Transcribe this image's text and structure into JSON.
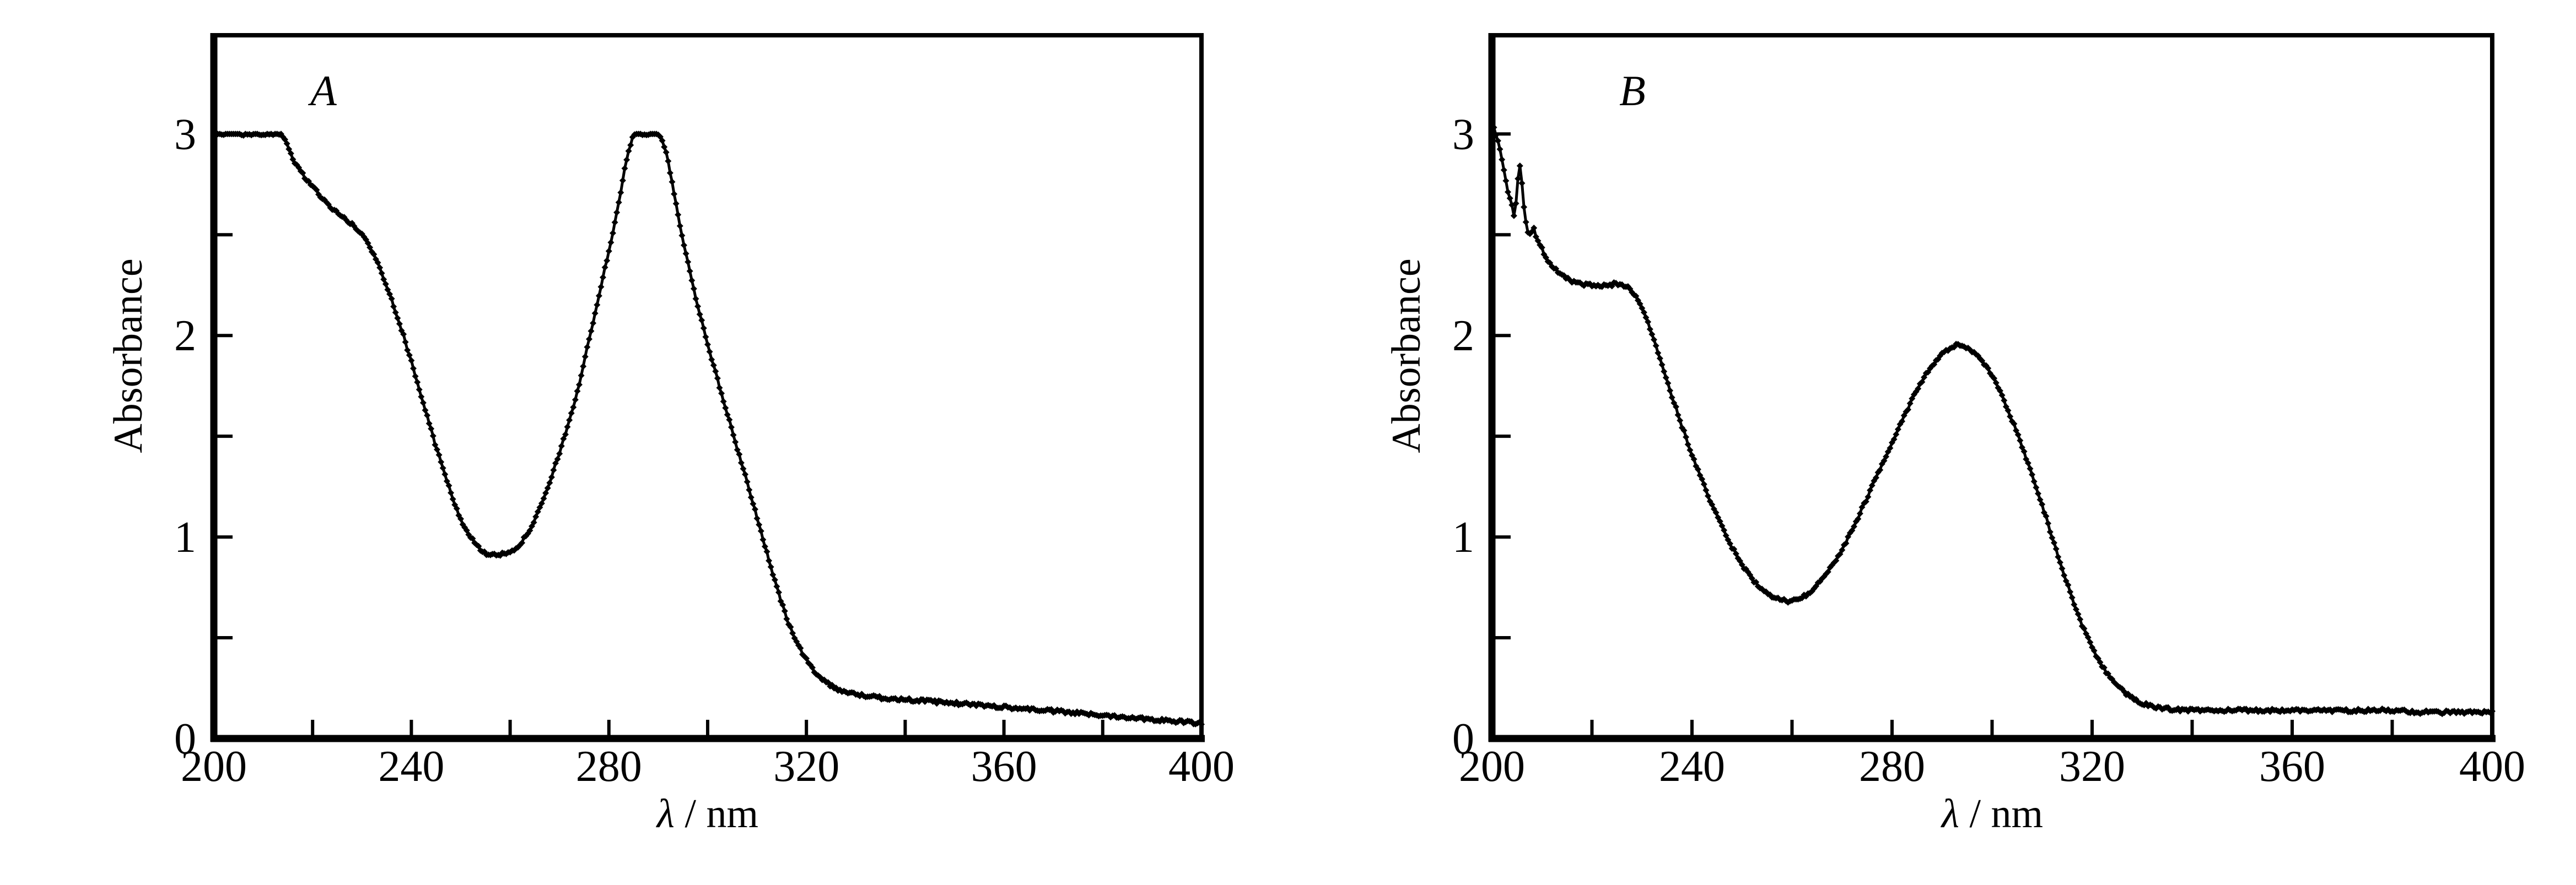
{
  "figure": {
    "background_color": "#ffffff",
    "panel_labels": [
      "A",
      "B"
    ]
  },
  "chart_data": [
    {
      "type": "line",
      "panel_label": "A",
      "title": "",
      "xlabel": "λ / nm",
      "xlabel_symbol": "λ",
      "xlabel_unit": " / nm",
      "ylabel": "Absorbance",
      "xlim": [
        200,
        400
      ],
      "ylim": [
        0,
        3.49
      ],
      "x_tick_labels": [
        200,
        240,
        280,
        320,
        360,
        400
      ],
      "x_ticks": [
        220,
        240,
        260,
        280,
        300,
        320,
        340,
        360,
        380,
        400
      ],
      "y_tick_labels": [
        0,
        1,
        2,
        3
      ],
      "y_ticks": [
        0.5,
        1,
        1.5,
        2,
        2.5,
        3
      ],
      "grid": false,
      "legend": "none",
      "line_color": "#000000",
      "marker": "diamond",
      "clip_max": 3.0,
      "noise_amplitude": 0.008,
      "x": [
        200,
        203,
        206,
        209,
        212,
        213.5,
        214.5,
        216,
        218,
        220,
        222,
        224,
        226,
        228,
        230,
        232,
        234,
        236,
        238,
        240,
        242,
        244,
        246,
        248,
        250,
        252,
        254,
        256,
        258,
        260,
        262,
        264,
        266,
        268,
        270,
        272,
        274,
        276,
        278,
        280,
        282,
        283.5,
        285,
        285.8,
        289.8,
        290.6,
        292,
        294,
        296,
        298,
        300,
        302,
        304,
        306,
        308,
        310,
        312,
        314,
        316,
        318,
        320,
        322,
        324,
        326,
        328,
        330,
        334,
        338,
        342,
        346,
        350,
        354,
        358,
        362,
        366,
        370,
        374,
        378,
        382,
        386,
        390,
        394,
        398,
        400
      ],
      "y": [
        3,
        3,
        3,
        3,
        3,
        3,
        2.96,
        2.88,
        2.8,
        2.74,
        2.68,
        2.63,
        2.59,
        2.55,
        2.5,
        2.42,
        2.31,
        2.18,
        2.03,
        1.87,
        1.7,
        1.53,
        1.37,
        1.22,
        1.09,
        1,
        0.94,
        0.91,
        0.913,
        0.93,
        0.965,
        1.04,
        1.14,
        1.27,
        1.42,
        1.58,
        1.76,
        1.98,
        2.2,
        2.42,
        2.66,
        2.86,
        2.99,
        3,
        3,
        2.98,
        2.86,
        2.6,
        2.36,
        2.15,
        1.96,
        1.78,
        1.61,
        1.44,
        1.27,
        1.1,
        0.92,
        0.75,
        0.6,
        0.48,
        0.39,
        0.325,
        0.28,
        0.25,
        0.23,
        0.22,
        0.205,
        0.197,
        0.19,
        0.182,
        0.175,
        0.168,
        0.16,
        0.152,
        0.144,
        0.136,
        0.128,
        0.119,
        0.112,
        0.104,
        0.096,
        0.087,
        0.079,
        0.075
      ]
    },
    {
      "type": "line",
      "panel_label": "B",
      "title": "",
      "xlabel": "λ / nm",
      "xlabel_symbol": "λ",
      "xlabel_unit": " / nm",
      "ylabel": "Absorbance",
      "xlim": [
        200,
        400
      ],
      "ylim": [
        0,
        3.49
      ],
      "x_tick_labels": [
        200,
        240,
        280,
        320,
        360,
        400
      ],
      "x_ticks": [
        220,
        240,
        260,
        280,
        300,
        320,
        340,
        360,
        380,
        400
      ],
      "y_tick_labels": [
        0,
        1,
        2,
        3
      ],
      "y_ticks": [
        0.5,
        1,
        1.5,
        2,
        2.5,
        3
      ],
      "grid": false,
      "legend": "none",
      "line_color": "#000000",
      "marker": "diamond",
      "clip_max": 3.45,
      "noise_amplitude": 0.008,
      "x": [
        200,
        201,
        202,
        203,
        204,
        204.6,
        205.2,
        205.7,
        206.3,
        207,
        207.6,
        208.3,
        209,
        210,
        211,
        212,
        213,
        214,
        215,
        216,
        217,
        218,
        220,
        222,
        224,
        225,
        226,
        227,
        228,
        229,
        230,
        231,
        232,
        234,
        236,
        238,
        240,
        242,
        244,
        246,
        248,
        250,
        252,
        254,
        256,
        258,
        260,
        262,
        264,
        266,
        268,
        270,
        272,
        274,
        276,
        278,
        280,
        282,
        284,
        286,
        288,
        290,
        292,
        293,
        294,
        296,
        298,
        300,
        302,
        304,
        306,
        308,
        310,
        312,
        314,
        316,
        318,
        320,
        322,
        324,
        326,
        328,
        330,
        332,
        334,
        336,
        340,
        345,
        350,
        355,
        360,
        365,
        370,
        375,
        380,
        382,
        384,
        388,
        392,
        396,
        400
      ],
      "y": [
        3.06,
        2.98,
        2.88,
        2.74,
        2.64,
        2.6,
        2.78,
        2.84,
        2.66,
        2.54,
        2.5,
        2.53,
        2.48,
        2.43,
        2.38,
        2.345,
        2.32,
        2.3,
        2.285,
        2.27,
        2.262,
        2.256,
        2.25,
        2.249,
        2.253,
        2.258,
        2.252,
        2.24,
        2.22,
        2.185,
        2.14,
        2.08,
        2.005,
        1.85,
        1.7,
        1.55,
        1.41,
        1.28,
        1.16,
        1.05,
        0.95,
        0.865,
        0.795,
        0.74,
        0.703,
        0.685,
        0.684,
        0.7,
        0.735,
        0.79,
        0.857,
        0.94,
        1.035,
        1.14,
        1.25,
        1.36,
        1.47,
        1.578,
        1.68,
        1.772,
        1.85,
        1.905,
        1.94,
        1.952,
        1.947,
        1.92,
        1.87,
        1.8,
        1.7,
        1.58,
        1.447,
        1.308,
        1.16,
        1,
        0.845,
        0.7,
        0.565,
        0.452,
        0.362,
        0.293,
        0.24,
        0.2,
        0.175,
        0.159,
        0.15,
        0.145,
        0.141,
        0.14,
        0.139,
        0.14,
        0.139,
        0.14,
        0.139,
        0.139,
        0.14,
        0.137,
        0.132,
        0.13,
        0.13,
        0.129,
        0.128
      ]
    }
  ]
}
